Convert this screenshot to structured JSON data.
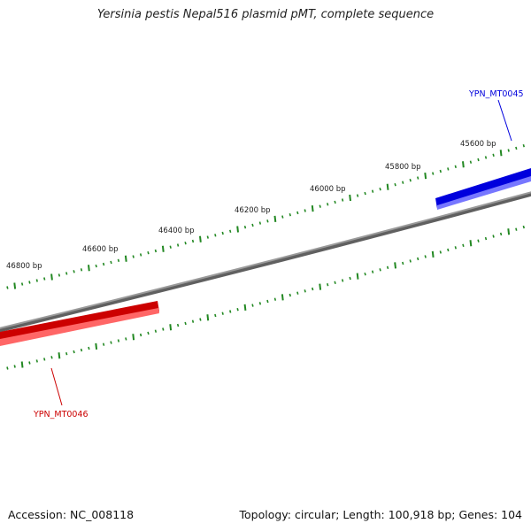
{
  "title": "Yersinia pestis Nepal516 plasmid pMT, complete sequence",
  "footer": {
    "accession": "Accession: NC_008118",
    "summary": "Topology: circular; Length: 100,918 bp; Genes: 104"
  },
  "scale": {
    "unit": "bp",
    "labels": [
      "45600 bp",
      "45800 bp",
      "46000 bp",
      "46200 bp",
      "46400 bp",
      "46600 bp",
      "46800 bp"
    ]
  },
  "genes": [
    {
      "name": "YPN_MT0045",
      "strand": "forward",
      "color": "#0000dd"
    },
    {
      "name": "YPN_MT0046",
      "strand": "reverse",
      "color": "#dd0000"
    }
  ],
  "colors": {
    "backbone": "#808080",
    "ticks": "#228822"
  }
}
